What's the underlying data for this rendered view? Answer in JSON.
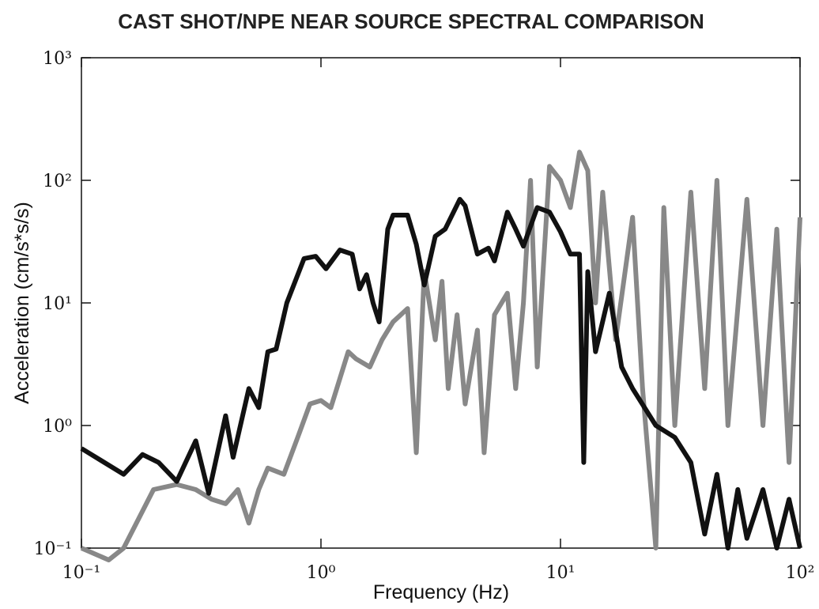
{
  "chart_data": {
    "type": "line",
    "title": "CAST SHOT/NPE NEAR SOURCE SPECTRAL COMPARISON",
    "x_label": "Frequency (Hz)",
    "y_label": "Acceleration (cm/s*s/s)",
    "log_x": true,
    "log_y": true,
    "xlim": [
      0.1,
      100
    ],
    "ylim": [
      0.1,
      1000
    ],
    "xticks": [
      {
        "value": 0.1,
        "label": "10⁻¹"
      },
      {
        "value": 1,
        "label": "10⁰"
      },
      {
        "value": 10,
        "label": "10¹"
      },
      {
        "value": 100,
        "label": "10²"
      }
    ],
    "yticks": [
      {
        "value": 0.1,
        "label": "10⁻¹"
      },
      {
        "value": 1,
        "label": "10⁰"
      },
      {
        "value": 10,
        "label": "10¹"
      },
      {
        "value": 100,
        "label": "10²"
      },
      {
        "value": 1000,
        "label": "10³"
      }
    ],
    "series": [
      {
        "color": "#888888",
        "x": [
          0.1,
          0.13,
          0.15,
          0.2,
          0.25,
          0.3,
          0.35,
          0.4,
          0.45,
          0.5,
          0.55,
          0.6,
          0.7,
          0.8,
          0.9,
          1.0,
          1.1,
          1.3,
          1.4,
          1.6,
          1.8,
          2.0,
          2.3,
          2.5,
          2.7,
          3.0,
          3.2,
          3.4,
          3.7,
          4.0,
          4.5,
          4.8,
          5.3,
          6.0,
          6.5,
          7.0,
          7.5,
          8.0,
          9.0,
          10,
          11,
          12,
          13,
          14,
          15,
          17,
          20,
          22,
          25,
          27,
          30,
          35,
          40,
          45,
          50,
          60,
          70,
          80,
          90,
          100
        ],
        "values": [
          0.1,
          0.08,
          0.1,
          0.3,
          0.33,
          0.3,
          0.25,
          0.23,
          0.3,
          0.16,
          0.3,
          0.45,
          0.4,
          0.8,
          1.5,
          1.6,
          1.4,
          4,
          3.5,
          3,
          5,
          7,
          9,
          0.6,
          18,
          5,
          15,
          2,
          8,
          1.5,
          6,
          0.6,
          8,
          12,
          2,
          10,
          100,
          3,
          130,
          100,
          60,
          170,
          120,
          10,
          80,
          5,
          50,
          2,
          0.1,
          60,
          1,
          80,
          2,
          100,
          1,
          70,
          1,
          40,
          0.5,
          50
        ]
      },
      {
        "color": "#111111",
        "x": [
          0.1,
          0.15,
          0.18,
          0.21,
          0.25,
          0.3,
          0.34,
          0.4,
          0.43,
          0.5,
          0.55,
          0.6,
          0.65,
          0.72,
          0.85,
          0.95,
          1.05,
          1.2,
          1.35,
          1.45,
          1.55,
          1.65,
          1.75,
          1.9,
          2.0,
          2.3,
          2.5,
          2.7,
          3.0,
          3.3,
          3.8,
          4.0,
          4.5,
          5.0,
          5.3,
          6.0,
          6.5,
          7.0,
          8.0,
          9.0,
          10,
          11,
          12,
          12.5,
          13,
          14,
          16,
          18,
          20,
          25,
          30,
          35,
          40,
          45,
          50,
          55,
          60,
          70,
          80,
          90,
          100
        ],
        "values": [
          0.65,
          0.4,
          0.58,
          0.5,
          0.35,
          0.75,
          0.28,
          1.2,
          0.55,
          2.0,
          1.4,
          4.0,
          4.2,
          10,
          23,
          24,
          19,
          27,
          25,
          13,
          17,
          10,
          7,
          40,
          52,
          52,
          30,
          14,
          35,
          40,
          70,
          62,
          25,
          28,
          22,
          55,
          40,
          29,
          60,
          55,
          38,
          25,
          25,
          0.5,
          18,
          4,
          12,
          3,
          2,
          1,
          0.8,
          0.5,
          0.13,
          0.4,
          0.1,
          0.3,
          0.12,
          0.3,
          0.1,
          0.25,
          0.1
        ]
      }
    ]
  }
}
